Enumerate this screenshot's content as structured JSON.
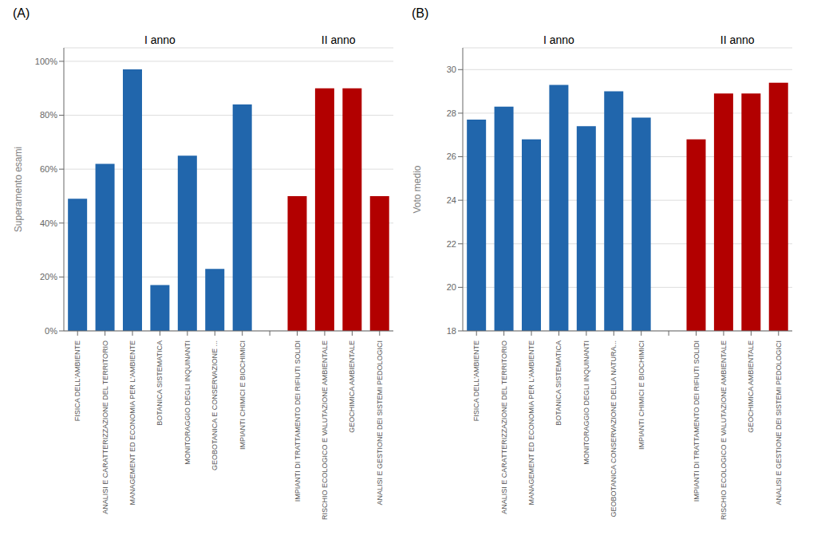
{
  "chart_data": [
    {
      "type": "bar",
      "title": "(A)",
      "ylabel": "Superamento esami",
      "categories": [
        "FISICA DELL'AMBIENTE",
        "ANALISI E CARATTERIZZAZIONE DEL TERRITORIO",
        "MANAGEMENT ED ECONOMIA PER L'AMBIENTE",
        "BOTANICA SISTEMATICA",
        "MONITORAGGIO DEGLI INQUINANTI",
        "GEOBOTANICA E CONSERVAZIONE ...",
        "IMPIANTI CHIMICI E BIOCHIMICI",
        "IMPIANTI DI TRATTAMENTO DEI RIFIUTI SOLIDI",
        "RISCHIO ECOLOGICO E VALUTAZIONE AMBIENTALE",
        "GEOCHIMICA AMBIENTALE",
        "ANALISI E GESTIONE DEI SISTEMI PEDOLOGICI"
      ],
      "values": [
        49,
        62,
        97,
        17,
        65,
        23,
        84,
        50,
        90,
        90,
        50
      ],
      "colors": [
        "#2166ac",
        "#2166ac",
        "#2166ac",
        "#2166ac",
        "#2166ac",
        "#2166ac",
        "#2166ac",
        "#b20000",
        "#b20000",
        "#b20000",
        "#b20000"
      ],
      "ylim": [
        0,
        105
      ],
      "yticks": [
        {
          "value": 0,
          "label": "0%"
        },
        {
          "value": 20,
          "label": "20%"
        },
        {
          "value": 40,
          "label": "40%"
        },
        {
          "value": 60,
          "label": "60%"
        },
        {
          "value": 80,
          "label": "80%"
        },
        {
          "value": 100,
          "label": "100%"
        }
      ],
      "grid": true,
      "annotations": [
        {
          "text": "I anno",
          "from": "FISICA DELL'AMBIENTE",
          "to": "IMPIANTI CHIMICI E BIOCHIMICI"
        },
        {
          "text": "II anno",
          "from": "IMPIANTI DI TRATTAMENTO DEI RIFIUTI SOLIDI",
          "to": "ANALISI E GESTIONE DEI SISTEMI PEDOLOGICI"
        }
      ]
    },
    {
      "type": "bar",
      "title": "(B)",
      "ylabel": "Voto medio",
      "categories": [
        "FISICA DELL'AMBIENTE",
        "ANALISI E CARATTERIZZAZIONE DEL TERRITORIO",
        "MANAGEMENT ED ECONOMIA PER L'AMBIENTE",
        "BOTANICA SISTEMATICA",
        "MONITORAGGIO DEGLI INQUINANTI",
        "GEOBOTANICA CONSERVAZIONE DELLA NATURA...",
        "IMPIANTI CHIMICI E BIOCHIMICI",
        "IMPIANTI DI TRATTAMENTO DEI RIFIUTI SOLIDI",
        "RISCHIO ECOLOGICO E VALUTAZIONE AMBIENTALE",
        "GEOCHIMICA AMBIENTALE",
        "ANALISI E GESTIONE DEI SISTEMI PEDOLOGICI"
      ],
      "values": [
        27.7,
        28.3,
        26.8,
        29.3,
        27.4,
        29.0,
        27.8,
        26.8,
        28.9,
        28.9,
        29.4
      ],
      "colors": [
        "#2166ac",
        "#2166ac",
        "#2166ac",
        "#2166ac",
        "#2166ac",
        "#2166ac",
        "#2166ac",
        "#b20000",
        "#b20000",
        "#b20000",
        "#b20000"
      ],
      "ylim": [
        18,
        31
      ],
      "yticks": [
        18,
        20,
        22,
        24,
        26,
        28,
        30
      ],
      "grid": true,
      "annotations": [
        {
          "text": "I anno",
          "from": "FISICA DELL'AMBIENTE",
          "to": "IMPIANTI CHIMICI E BIOCHIMICI"
        },
        {
          "text": "II anno",
          "from": "IMPIANTI DI TRATTAMENTO DEI RIFIUTI SOLIDI",
          "to": "ANALISI E GESTIONE DEI SISTEMI PEDOLOGICI"
        }
      ]
    }
  ]
}
